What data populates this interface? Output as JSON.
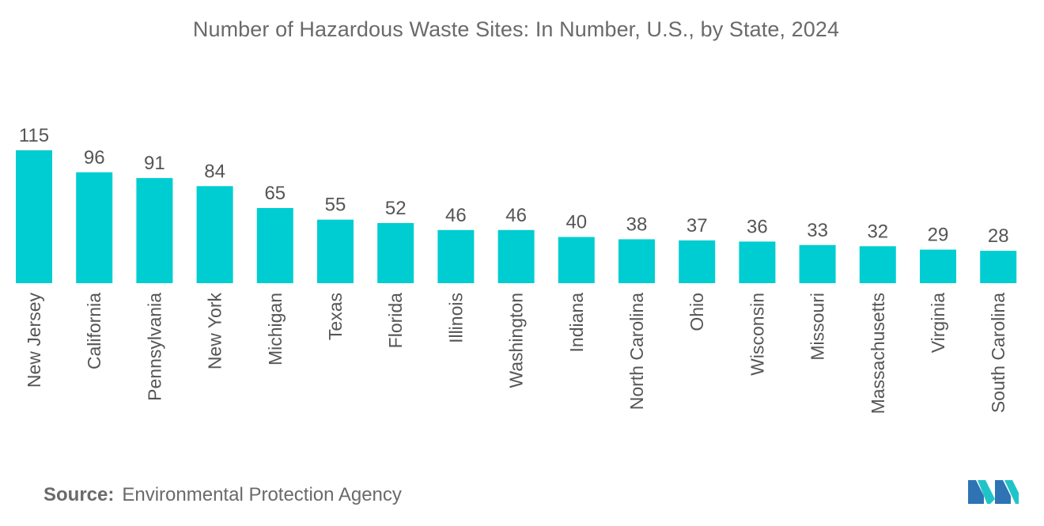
{
  "title": "Number of Hazardous Waste Sites: In Number, U.S., by State, 2024",
  "source": {
    "label": "Source:",
    "text": "Environmental Protection Agency"
  },
  "logo": {
    "name": "mordor-intelligence-logo",
    "colors": [
      "#2e74b5",
      "#1fc4c8"
    ]
  },
  "colors": {
    "bar": "#00cdd1",
    "text": "#555555",
    "axis": "#e3e3e3"
  },
  "chart_data": {
    "type": "bar",
    "title": "Number of Hazardous Waste Sites: In Number, U.S., by State, 2024",
    "xlabel": "",
    "ylabel": "",
    "ylim": [
      0,
      115
    ],
    "grid": false,
    "legend": "none",
    "data_labels": true,
    "categories": [
      "New Jersey",
      "California",
      "Pennsylvania",
      "New York",
      "Michigan",
      "Texas",
      "Florida",
      "Illinois",
      "Washington",
      "Indiana",
      "North Carolina",
      "Ohio",
      "Wisconsin",
      "Missouri",
      "Massachusetts",
      "Virginia",
      "South Carolina"
    ],
    "values": [
      115,
      96,
      91,
      84,
      65,
      55,
      52,
      46,
      46,
      40,
      38,
      37,
      36,
      33,
      32,
      29,
      28
    ]
  }
}
